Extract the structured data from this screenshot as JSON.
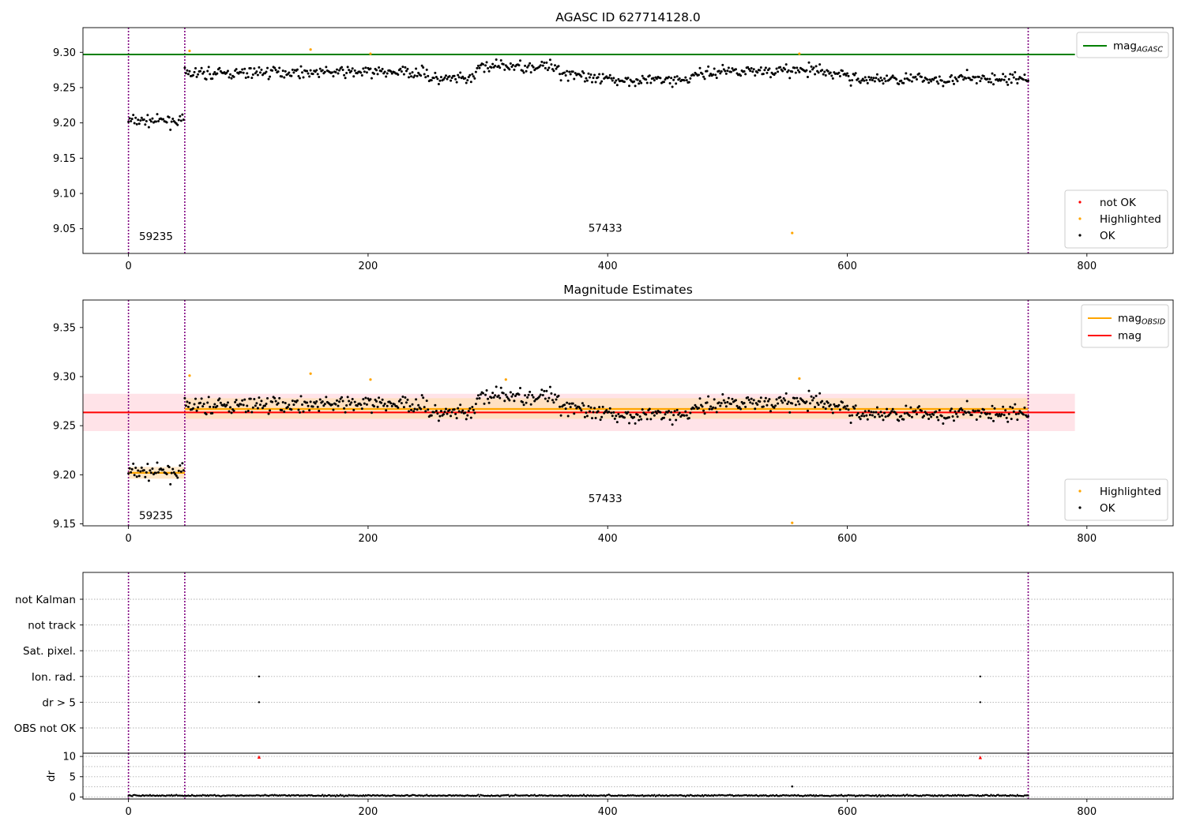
{
  "colors": {
    "ok": "#000000",
    "highlighted": "#ffa500",
    "not_ok": "#ff0000",
    "mag_agasc": "#008000",
    "mag_obsid": "#ffa500",
    "mag": "#ff0000",
    "band_fill": "#ffc0cb",
    "obs_band_fill": "#ffdeb0",
    "boundary": "#800080",
    "grid": "#b0b0b0"
  },
  "chart_data": [
    {
      "type": "scatter",
      "title": "AGASC ID 627714128.0",
      "xlim": [
        -38,
        872
      ],
      "ylim": [
        9.015,
        9.335
      ],
      "xticks": [
        0,
        200,
        400,
        600,
        800
      ],
      "yticks": [
        9.05,
        9.1,
        9.15,
        9.2,
        9.25,
        9.3
      ],
      "ytick_labels": [
        "9.05",
        "9.10",
        "9.15",
        "9.20",
        "9.25",
        "9.30"
      ],
      "obsid_boundaries": [
        0,
        47,
        751
      ],
      "obsid_labels": [
        {
          "text": "59235",
          "x": 23,
          "y": 9.034
        },
        {
          "text": "57433",
          "x": 398,
          "y": 9.046
        }
      ],
      "lines": [
        {
          "name": "mag_AGASC",
          "y": 9.297,
          "x0": -38,
          "x1": 790
        }
      ],
      "legend_lines": {
        "position": "upper right",
        "entries": [
          {
            "label": "mag",
            "sub": "AGASC",
            "color": "mag_agasc"
          }
        ]
      },
      "legend_points": {
        "position": "lower right",
        "entries": [
          {
            "label": "not OK",
            "color": "not_ok"
          },
          {
            "label": "Highlighted",
            "color": "highlighted"
          },
          {
            "label": "OK",
            "color": "ok"
          }
        ]
      },
      "points_mode": "main",
      "highlighted_points": [
        [
          51,
          9.302
        ],
        [
          152,
          9.304
        ],
        [
          202,
          9.298
        ],
        [
          554,
          9.044
        ],
        [
          560,
          9.298
        ]
      ]
    },
    {
      "type": "scatter",
      "title": "Magnitude Estimates",
      "xlim": [
        -38,
        872
      ],
      "ylim": [
        9.148,
        9.378
      ],
      "xticks": [
        0,
        200,
        400,
        600,
        800
      ],
      "yticks": [
        9.15,
        9.2,
        9.25,
        9.3,
        9.35
      ],
      "ytick_labels": [
        "9.15",
        "9.20",
        "9.25",
        "9.30",
        "9.35"
      ],
      "obsid_boundaries": [
        0,
        47,
        751
      ],
      "obsid_labels": [
        {
          "text": "59235",
          "x": 23,
          "y": 9.155
        },
        {
          "text": "57433",
          "x": 398,
          "y": 9.172
        }
      ],
      "mag": {
        "y": 9.2635,
        "band": [
          9.2445,
          9.2825
        ],
        "x0": -38,
        "x1": 790
      },
      "mag_obsid": [
        {
          "x0": 0,
          "x1": 47,
          "y": 9.202,
          "band": [
            9.196,
            9.208
          ]
        },
        {
          "x0": 47,
          "x1": 751,
          "y": 9.267,
          "band": [
            9.257,
            9.278
          ]
        }
      ],
      "legend_lines": {
        "position": "upper right",
        "entries": [
          {
            "label": "mag",
            "sub": "OBSID",
            "color": "mag_obsid"
          },
          {
            "label": "mag",
            "sub": "",
            "color": "mag"
          }
        ]
      },
      "legend_points": {
        "position": "lower right",
        "entries": [
          {
            "label": "Highlighted",
            "color": "highlighted"
          },
          {
            "label": "OK",
            "color": "ok"
          }
        ]
      },
      "points_mode": "main",
      "highlighted_points": [
        [
          51,
          9.301
        ],
        [
          152,
          9.303
        ],
        [
          202,
          9.297
        ],
        [
          315,
          9.297
        ],
        [
          554,
          9.151
        ],
        [
          560,
          9.298
        ]
      ]
    },
    {
      "type": "scatter",
      "title": "",
      "xlim": [
        -38,
        872
      ],
      "flag_rows": [
        "not Kalman",
        "not track",
        "Sat. pixel.",
        "Ion. rad.",
        "dr > 5",
        "OBS not OK"
      ],
      "obsid_boundaries": [
        0,
        47,
        751
      ],
      "flag_points": [
        {
          "row": "Ion. rad.",
          "x": 109
        },
        {
          "row": "Ion. rad.",
          "x": 711
        },
        {
          "row": "dr > 5",
          "x": 109
        },
        {
          "row": "dr > 5",
          "x": 711
        }
      ]
    },
    {
      "type": "scatter",
      "title": "",
      "ylabel": "dr",
      "xlim": [
        -38,
        872
      ],
      "ylim": [
        -0.5,
        10.8
      ],
      "xticks": [
        0,
        200,
        400,
        600,
        800
      ],
      "yticks": [
        0,
        5,
        10
      ],
      "ytick_labels": [
        "0",
        "5",
        "10"
      ],
      "obsid_boundaries": [
        0,
        47,
        751
      ],
      "dr_outliers": [
        [
          109,
          9.8
        ],
        [
          711,
          9.7
        ]
      ],
      "dr_points": [
        [
          554,
          2.6
        ]
      ],
      "points_mode": "dr"
    }
  ]
}
